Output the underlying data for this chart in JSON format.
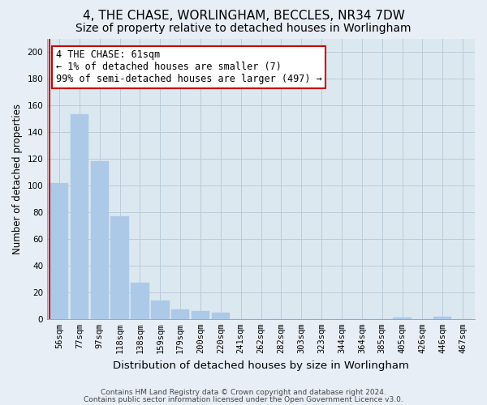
{
  "title": "4, THE CHASE, WORLINGHAM, BECCLES, NR34 7DW",
  "subtitle": "Size of property relative to detached houses in Worlingham",
  "xlabel": "Distribution of detached houses by size in Worlingham",
  "ylabel": "Number of detached properties",
  "bar_labels": [
    "56sqm",
    "77sqm",
    "97sqm",
    "118sqm",
    "138sqm",
    "159sqm",
    "179sqm",
    "200sqm",
    "220sqm",
    "241sqm",
    "262sqm",
    "282sqm",
    "303sqm",
    "323sqm",
    "344sqm",
    "364sqm",
    "385sqm",
    "405sqm",
    "426sqm",
    "446sqm",
    "467sqm"
  ],
  "bar_values": [
    102,
    153,
    118,
    77,
    27,
    14,
    7,
    6,
    5,
    0,
    0,
    0,
    0,
    0,
    0,
    0,
    0,
    1,
    0,
    2,
    0
  ],
  "bar_color": "#adc9e8",
  "annotation_box_color": "#cc0000",
  "annotation_line1": "4 THE CHASE: 61sqm",
  "annotation_line2": "← 1% of detached houses are smaller (7)",
  "annotation_line3": "99% of semi-detached houses are larger (497) →",
  "ylim": [
    0,
    210
  ],
  "yticks": [
    0,
    20,
    40,
    60,
    80,
    100,
    120,
    140,
    160,
    180,
    200
  ],
  "footer1": "Contains HM Land Registry data © Crown copyright and database right 2024.",
  "footer2": "Contains public sector information licensed under the Open Government Licence v3.0.",
  "bg_color": "#e8eef5",
  "plot_bg_color": "#dce8f0",
  "grid_color": "#b8ccd8",
  "title_fontsize": 11,
  "subtitle_fontsize": 10,
  "xlabel_fontsize": 9.5,
  "ylabel_fontsize": 8.5,
  "tick_fontsize": 7.5,
  "annotation_fontsize": 8.5,
  "footer_fontsize": 6.5
}
